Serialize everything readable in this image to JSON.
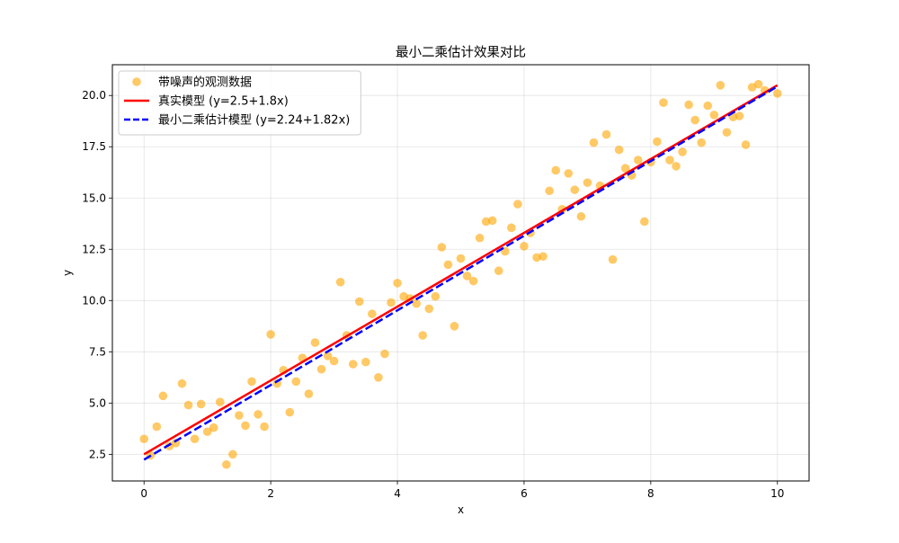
{
  "chart_data": {
    "type": "scatter",
    "title": "最小二乘估计效果对比",
    "xlabel": "x",
    "ylabel": "y",
    "xlim": [
      -0.5,
      10.5
    ],
    "ylim": [
      1.2,
      21.5
    ],
    "xticks": [
      0,
      2,
      4,
      6,
      8,
      10
    ],
    "xtick_labels": [
      "0",
      "2",
      "4",
      "6",
      "8",
      "10"
    ],
    "yticks": [
      2.5,
      5.0,
      7.5,
      10.0,
      12.5,
      15.0,
      17.5,
      20.0
    ],
    "ytick_labels": [
      "2.5",
      "5.0",
      "7.5",
      "10.0",
      "12.5",
      "15.0",
      "17.5",
      "20.0"
    ],
    "grid": true,
    "legend_position": "upper-left",
    "series": [
      {
        "name": "带噪声的观测数据",
        "kind": "scatter",
        "color": "#FFA500",
        "alpha": 0.6,
        "points": [
          [
            0.0,
            3.25
          ],
          [
            0.1,
            2.45
          ],
          [
            0.2,
            3.85
          ],
          [
            0.3,
            5.35
          ],
          [
            0.4,
            2.9
          ],
          [
            0.5,
            3.05
          ],
          [
            0.6,
            5.95
          ],
          [
            0.7,
            4.9
          ],
          [
            0.8,
            3.25
          ],
          [
            0.9,
            4.95
          ],
          [
            1.0,
            3.6
          ],
          [
            1.1,
            3.8
          ],
          [
            1.2,
            5.05
          ],
          [
            1.3,
            2.0
          ],
          [
            1.4,
            2.5
          ],
          [
            1.5,
            4.4
          ],
          [
            1.6,
            3.9
          ],
          [
            1.7,
            6.05
          ],
          [
            1.8,
            4.45
          ],
          [
            1.9,
            3.85
          ],
          [
            2.0,
            8.35
          ],
          [
            2.1,
            5.95
          ],
          [
            2.2,
            6.6
          ],
          [
            2.3,
            4.55
          ],
          [
            2.4,
            6.05
          ],
          [
            2.5,
            7.2
          ],
          [
            2.6,
            5.45
          ],
          [
            2.7,
            7.95
          ],
          [
            2.8,
            6.65
          ],
          [
            2.9,
            7.3
          ],
          [
            3.0,
            7.05
          ],
          [
            3.1,
            10.9
          ],
          [
            3.2,
            8.3
          ],
          [
            3.3,
            6.9
          ],
          [
            3.4,
            9.95
          ],
          [
            3.5,
            7.0
          ],
          [
            3.6,
            9.35
          ],
          [
            3.7,
            6.25
          ],
          [
            3.8,
            7.4
          ],
          [
            3.9,
            9.9
          ],
          [
            4.0,
            10.85
          ],
          [
            4.1,
            10.2
          ],
          [
            4.2,
            10.1
          ],
          [
            4.3,
            9.85
          ],
          [
            4.4,
            8.3
          ],
          [
            4.5,
            9.6
          ],
          [
            4.6,
            10.2
          ],
          [
            4.7,
            12.6
          ],
          [
            4.8,
            11.75
          ],
          [
            4.9,
            8.75
          ],
          [
            5.0,
            12.05
          ],
          [
            5.1,
            11.2
          ],
          [
            5.2,
            10.95
          ],
          [
            5.3,
            13.05
          ],
          [
            5.4,
            13.85
          ],
          [
            5.5,
            13.9
          ],
          [
            5.6,
            11.45
          ],
          [
            5.7,
            12.4
          ],
          [
            5.8,
            13.55
          ],
          [
            5.9,
            14.7
          ],
          [
            6.0,
            12.65
          ],
          [
            6.1,
            13.3
          ],
          [
            6.2,
            12.1
          ],
          [
            6.3,
            12.15
          ],
          [
            6.4,
            15.35
          ],
          [
            6.5,
            16.35
          ],
          [
            6.6,
            14.45
          ],
          [
            6.7,
            16.2
          ],
          [
            6.8,
            15.4
          ],
          [
            6.9,
            14.1
          ],
          [
            7.0,
            15.75
          ],
          [
            7.1,
            17.7
          ],
          [
            7.2,
            15.6
          ],
          [
            7.3,
            18.1
          ],
          [
            7.4,
            12.0
          ],
          [
            7.5,
            17.35
          ],
          [
            7.6,
            16.45
          ],
          [
            7.7,
            16.1
          ],
          [
            7.8,
            16.85
          ],
          [
            7.9,
            13.85
          ],
          [
            8.0,
            16.75
          ],
          [
            8.1,
            17.75
          ],
          [
            8.2,
            19.65
          ],
          [
            8.3,
            16.85
          ],
          [
            8.4,
            16.55
          ],
          [
            8.5,
            17.25
          ],
          [
            8.6,
            19.55
          ],
          [
            8.7,
            18.8
          ],
          [
            8.8,
            17.7
          ],
          [
            8.9,
            19.5
          ],
          [
            9.0,
            19.05
          ],
          [
            9.1,
            20.5
          ],
          [
            9.2,
            18.2
          ],
          [
            9.3,
            18.95
          ],
          [
            9.4,
            19.0
          ],
          [
            9.5,
            17.6
          ],
          [
            9.6,
            20.4
          ],
          [
            9.7,
            20.55
          ],
          [
            9.8,
            20.25
          ],
          [
            10.0,
            20.1
          ]
        ]
      },
      {
        "name": "真实模型 (y=2.5+1.8x)",
        "kind": "line",
        "color": "#FF0000",
        "style": "solid",
        "intercept": 2.5,
        "slope": 1.8,
        "x_range": [
          0,
          10
        ]
      },
      {
        "name": "最小二乘估计模型 (y=2.24+1.82x)",
        "kind": "line",
        "color": "#0000FF",
        "style": "dashed",
        "intercept": 2.24,
        "slope": 1.82,
        "x_range": [
          0,
          10
        ]
      }
    ]
  }
}
